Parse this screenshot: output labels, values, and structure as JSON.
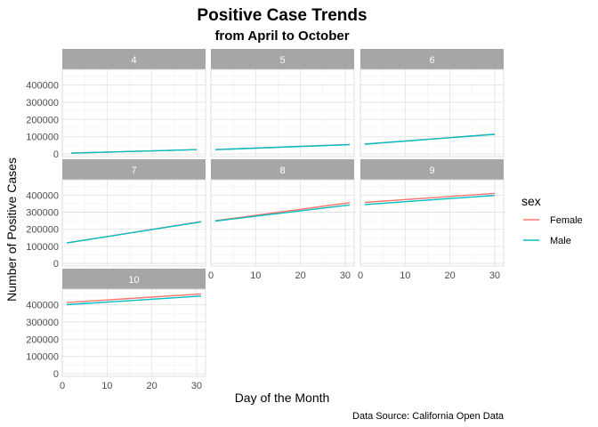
{
  "chart_data": {
    "type": "line",
    "title": "Positive Case Trends",
    "subtitle": "from April to October",
    "xlabel": "Day of the Month",
    "ylabel": "Number of Positive Cases",
    "caption": "Data Source: California Open Data",
    "legend": {
      "title": "sex",
      "position": "right"
    },
    "grid": true,
    "xlim": [
      0,
      32
    ],
    "ylim": [
      -15000,
      490000
    ],
    "x_ticks": [
      0,
      10,
      20,
      30
    ],
    "y_ticks": [
      0,
      100000,
      200000,
      300000,
      400000
    ],
    "colors": {
      "Female": "#F8766D",
      "Male": "#00BFC4"
    },
    "facets": [
      {
        "label": "4",
        "days": [
          2,
          30
        ],
        "series": [
          {
            "name": "Female",
            "values": [
              5000,
              25000
            ]
          },
          {
            "name": "Male",
            "values": [
              5000,
              25000
            ]
          }
        ]
      },
      {
        "label": "5",
        "days": [
          1,
          31
        ],
        "series": [
          {
            "name": "Female",
            "values": [
              25000,
              55000
            ]
          },
          {
            "name": "Male",
            "values": [
              25000,
              54000
            ]
          }
        ]
      },
      {
        "label": "6",
        "days": [
          1,
          30
        ],
        "series": [
          {
            "name": "Female",
            "values": [
              57000,
              115000
            ]
          },
          {
            "name": "Male",
            "values": [
              57000,
              114000
            ]
          }
        ]
      },
      {
        "label": "7",
        "days": [
          1,
          31
        ],
        "series": [
          {
            "name": "Female",
            "values": [
              120000,
              245000
            ]
          },
          {
            "name": "Male",
            "values": [
              120000,
              243000
            ]
          }
        ]
      },
      {
        "label": "8",
        "days": [
          1,
          31
        ],
        "series": [
          {
            "name": "Female",
            "values": [
              250000,
              355000
            ]
          },
          {
            "name": "Male",
            "values": [
              248000,
              342000
            ]
          }
        ]
      },
      {
        "label": "9",
        "days": [
          1,
          30
        ],
        "series": [
          {
            "name": "Female",
            "values": [
              357000,
              410000
            ]
          },
          {
            "name": "Male",
            "values": [
              345000,
              398000
            ]
          }
        ]
      },
      {
        "label": "10",
        "days": [
          1,
          31
        ],
        "series": [
          {
            "name": "Female",
            "values": [
              412000,
              462000
            ]
          },
          {
            "name": "Male",
            "values": [
              400000,
              450000
            ]
          }
        ]
      }
    ]
  }
}
